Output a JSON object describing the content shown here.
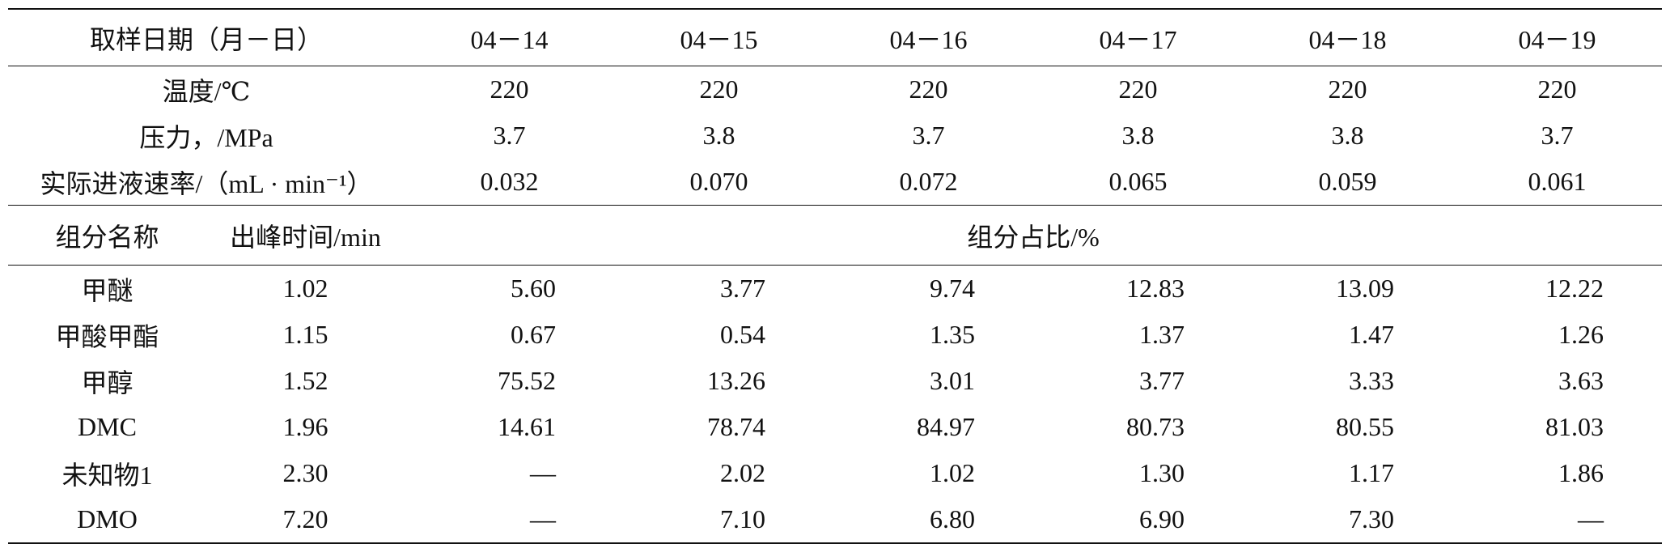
{
  "table": {
    "header": {
      "label": "取样日期（月－日）",
      "dates": [
        "04－14",
        "04－15",
        "04－16",
        "04－17",
        "04－18",
        "04－19"
      ]
    },
    "conditions": [
      {
        "label": "温度/℃",
        "values": [
          "220",
          "220",
          "220",
          "220",
          "220",
          "220"
        ]
      },
      {
        "label": "压力，/MPa",
        "values": [
          "3.7",
          "3.8",
          "3.7",
          "3.8",
          "3.8",
          "3.7"
        ]
      },
      {
        "label": "实际进液速率/（mL · min⁻¹）",
        "values": [
          "0.032",
          "0.070",
          "0.072",
          "0.065",
          "0.059",
          "0.061"
        ]
      }
    ],
    "section": {
      "name": "组分名称",
      "time": "出峰时间/min",
      "share": "组分占比/%"
    },
    "components": [
      {
        "name": "甲醚",
        "time": "1.02",
        "values": [
          "5.60",
          "3.77",
          "9.74",
          "12.83",
          "13.09",
          "12.22"
        ]
      },
      {
        "name": "甲酸甲酯",
        "time": "1.15",
        "values": [
          "0.67",
          "0.54",
          "1.35",
          "1.37",
          "1.47",
          "1.26"
        ]
      },
      {
        "name": "甲醇",
        "time": "1.52",
        "values": [
          "75.52",
          "13.26",
          "3.01",
          "3.77",
          "3.33",
          "3.63"
        ]
      },
      {
        "name": "DMC",
        "time": "1.96",
        "values": [
          "14.61",
          "78.74",
          "84.97",
          "80.73",
          "80.55",
          "81.03"
        ]
      },
      {
        "name": "未知物1",
        "time": "2.30",
        "values": [
          "—",
          "2.02",
          "1.02",
          "1.30",
          "1.17",
          "1.86"
        ]
      },
      {
        "name": "DMO",
        "time": "7.20",
        "values": [
          "—",
          "7.10",
          "6.80",
          "6.90",
          "7.30",
          "—"
        ]
      }
    ]
  }
}
